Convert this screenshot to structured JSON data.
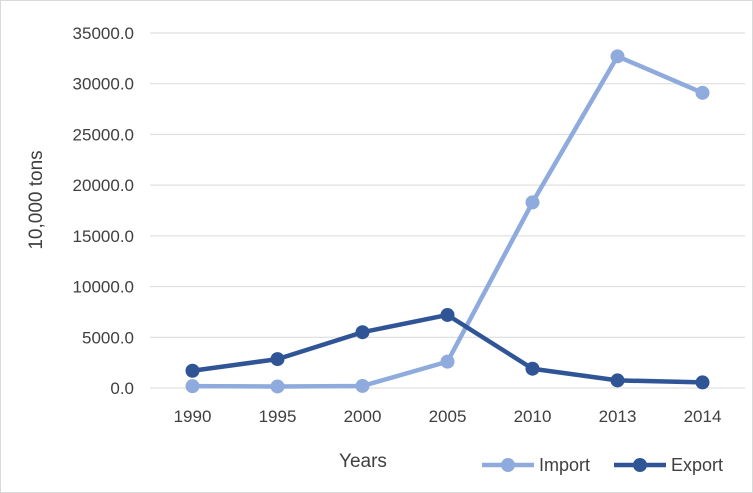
{
  "chart_data": {
    "type": "line",
    "categories": [
      "1990",
      "1995",
      "2000",
      "2005",
      "2010",
      "2013",
      "2014"
    ],
    "series": [
      {
        "name": "Import",
        "color": "#8faadc",
        "values": [
          180,
          150,
          200,
          2600,
          18300,
          32700,
          29100
        ]
      },
      {
        "name": "Export",
        "color": "#2f5597",
        "values": [
          1700,
          2850,
          5500,
          7200,
          1900,
          750,
          550
        ]
      }
    ],
    "title": "",
    "xlabel": "Years",
    "ylabel": "10,000 tons",
    "ylim": [
      0,
      35000
    ],
    "ytick_step": 5000,
    "yticks": [
      "0.0",
      "5000.0",
      "10000.0",
      "15000.0",
      "20000.0",
      "25000.0",
      "30000.0",
      "35000.0"
    ],
    "grid": true,
    "legend_position": "bottom-right"
  }
}
